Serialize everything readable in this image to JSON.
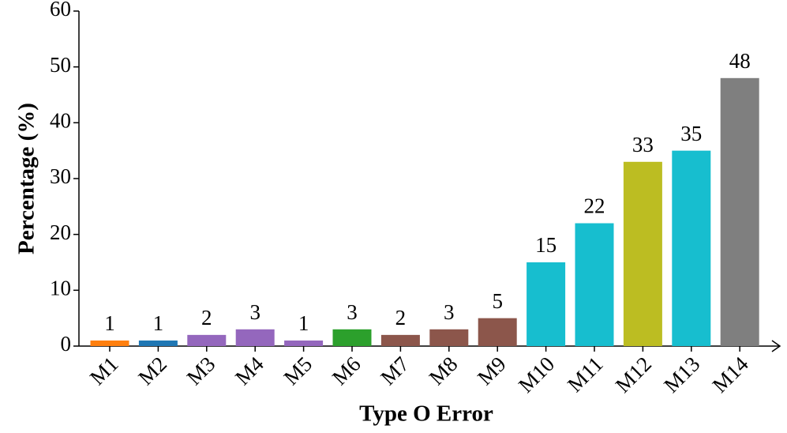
{
  "chart_data": {
    "type": "bar",
    "x_label": "Type O Error",
    "y_label": "Percentage (%)",
    "categories": [
      "M1",
      "M2",
      "M3",
      "M4",
      "M5",
      "M6",
      "M7",
      "M8",
      "M9",
      "M10",
      "M11",
      "M12",
      "M13",
      "M14"
    ],
    "values": [
      1,
      1,
      2,
      3,
      1,
      3,
      2,
      3,
      5,
      15,
      22,
      33,
      35,
      48
    ],
    "colors": [
      "#ff7f0e",
      "#1f77b4",
      "#9467bd",
      "#9467bd",
      "#9467bd",
      "#2ca02c",
      "#8c564b",
      "#8c564b",
      "#8c564b",
      "#17becf",
      "#17becf",
      "#bcbd22",
      "#17becf",
      "#7f7f7f"
    ],
    "ylim": [
      0,
      60
    ],
    "yticks": [
      0,
      10,
      20,
      30,
      40,
      50,
      60
    ],
    "grid": false
  }
}
